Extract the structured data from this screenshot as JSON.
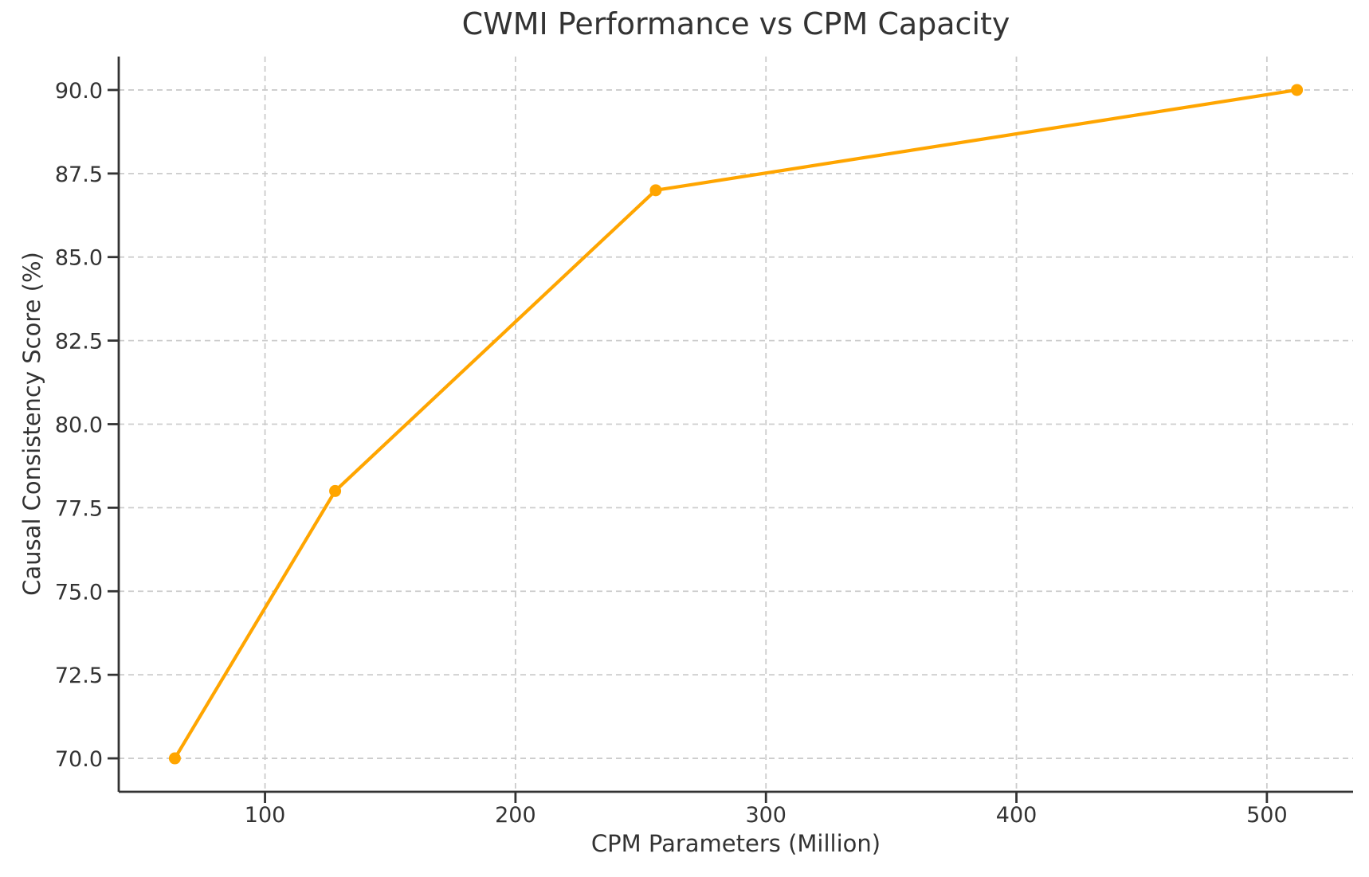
{
  "chart_data": {
    "type": "line",
    "title": "CWMI Performance vs CPM Capacity",
    "xlabel": "CPM Parameters (Million)",
    "ylabel": "Causal Consistency Score (%)",
    "x": [
      64,
      128,
      256,
      512
    ],
    "y": [
      70.0,
      78.0,
      87.0,
      90.0
    ],
    "xlim": [
      41.6,
      534.4
    ],
    "ylim": [
      69.0,
      91.0
    ],
    "xticks": [
      100,
      200,
      300,
      400,
      500
    ],
    "xtick_labels": [
      "100",
      "200",
      "300",
      "400",
      "500"
    ],
    "yticks": [
      70.0,
      72.5,
      75.0,
      77.5,
      80.0,
      82.5,
      85.0,
      87.5,
      90.0
    ],
    "ytick_labels": [
      "70.0",
      "72.5",
      "75.0",
      "77.5",
      "80.0",
      "82.5",
      "85.0",
      "87.5",
      "90.0"
    ],
    "grid": true,
    "legend": "none",
    "marker": "circle",
    "line_color": "#FFA500",
    "grid_color": "#cccccc",
    "axis_color": "#333333",
    "background_color": "#ffffff"
  }
}
